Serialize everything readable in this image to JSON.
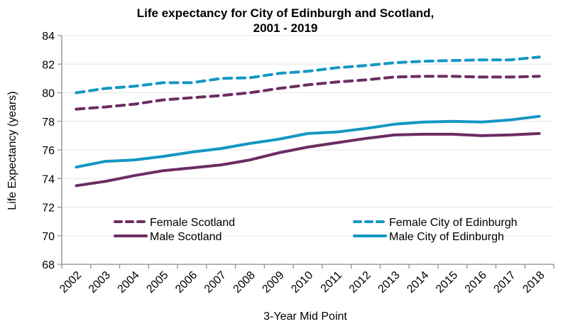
{
  "chart_data": {
    "type": "line",
    "title": "Life expectancy for City of Edinburgh and Scotland,",
    "subtitle": "2001 - 2019",
    "xlabel": "3-Year Mid Point",
    "ylabel": "Life Expectancy (years)",
    "ylim": [
      68,
      84
    ],
    "yticks": [
      "68",
      "70",
      "72",
      "74",
      "76",
      "78",
      "80",
      "82",
      "84"
    ],
    "grid": true,
    "legend_position": "lower-center",
    "categories": [
      "2002",
      "2003",
      "2004",
      "2005",
      "2006",
      "2007",
      "2008",
      "2009",
      "2010",
      "2011",
      "2012",
      "2013",
      "2014",
      "2015",
      "2016",
      "2017",
      "2018"
    ],
    "series": [
      {
        "name": "Female Scotland",
        "color": "#6B2D62",
        "dash": "dashed",
        "values": [
          78.85,
          79.0,
          79.2,
          79.5,
          79.65,
          79.8,
          80.0,
          80.3,
          80.55,
          80.75,
          80.9,
          81.1,
          81.15,
          81.15,
          81.1,
          81.1,
          81.15
        ]
      },
      {
        "name": "Female City of Edinburgh",
        "color": "#1497C3",
        "dash": "dashed",
        "values": [
          80.0,
          80.3,
          80.45,
          80.7,
          80.7,
          81.0,
          81.05,
          81.35,
          81.5,
          81.75,
          81.9,
          82.1,
          82.2,
          82.25,
          82.3,
          82.3,
          82.5
        ]
      },
      {
        "name": "Male Scotland",
        "color": "#6B2D62",
        "dash": "solid",
        "values": [
          73.5,
          73.8,
          74.2,
          74.55,
          74.75,
          74.95,
          75.3,
          75.8,
          76.2,
          76.5,
          76.8,
          77.05,
          77.1,
          77.1,
          77.0,
          77.05,
          77.15
        ]
      },
      {
        "name": "Male City of Edinburgh",
        "color": "#1497C3",
        "dash": "solid",
        "values": [
          74.8,
          75.2,
          75.3,
          75.55,
          75.85,
          76.1,
          76.45,
          76.75,
          77.15,
          77.25,
          77.5,
          77.8,
          77.95,
          78.0,
          77.95,
          78.1,
          78.35
        ]
      }
    ]
  }
}
